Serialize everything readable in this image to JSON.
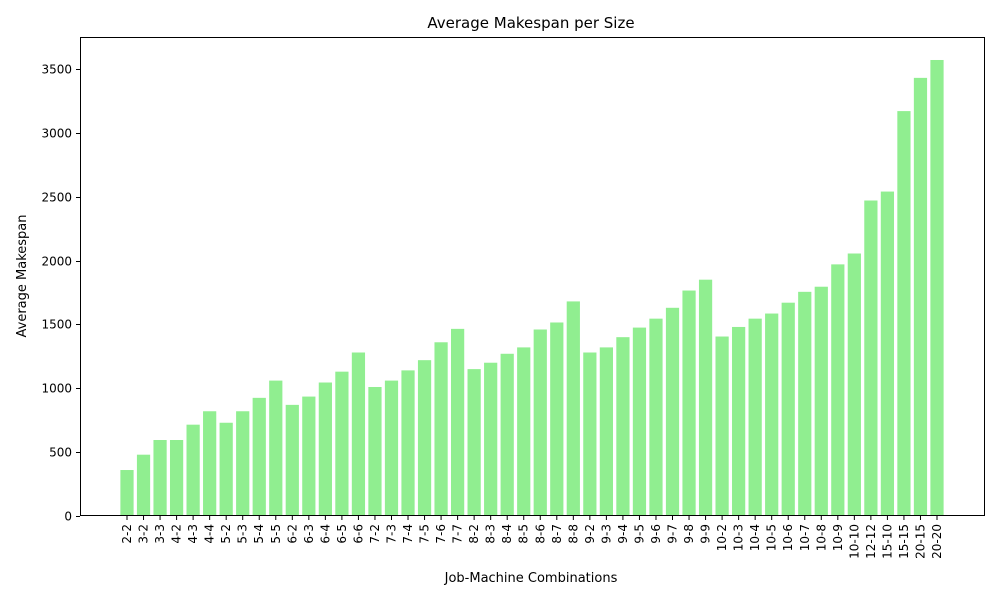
{
  "chart_data": {
    "type": "bar",
    "title": "Average Makespan per Size",
    "xlabel": "Job-Machine Combinations",
    "ylabel": "Average Makespan",
    "ylim": [
      0,
      3750
    ],
    "yticks": [
      0,
      500,
      1000,
      1500,
      2000,
      2500,
      3000,
      3500
    ],
    "bar_color": "#90ee90",
    "grid": false,
    "categories": [
      "2-2",
      "3-2",
      "3-3",
      "4-2",
      "4-3",
      "4-4",
      "5-2",
      "5-3",
      "5-4",
      "5-5",
      "6-2",
      "6-3",
      "6-4",
      "6-5",
      "6-6",
      "7-2",
      "7-3",
      "7-4",
      "7-5",
      "7-6",
      "7-7",
      "8-2",
      "8-3",
      "8-4",
      "8-5",
      "8-6",
      "8-7",
      "8-8",
      "9-2",
      "9-3",
      "9-4",
      "9-5",
      "9-6",
      "9-7",
      "9-8",
      "9-9",
      "10-2",
      "10-3",
      "10-4",
      "10-5",
      "10-6",
      "10-7",
      "10-8",
      "10-9",
      "10-10",
      "12-12",
      "15-10",
      "15-15",
      "20-15",
      "20-20"
    ],
    "values": [
      360,
      480,
      595,
      595,
      715,
      820,
      730,
      820,
      925,
      1060,
      870,
      935,
      1045,
      1130,
      1280,
      1010,
      1060,
      1140,
      1220,
      1360,
      1465,
      1150,
      1200,
      1270,
      1320,
      1460,
      1515,
      1680,
      1280,
      1320,
      1400,
      1475,
      1545,
      1630,
      1765,
      1850,
      1405,
      1480,
      1545,
      1585,
      1670,
      1755,
      1795,
      1970,
      2055,
      2470,
      2540,
      3170,
      3430,
      3570
    ]
  }
}
